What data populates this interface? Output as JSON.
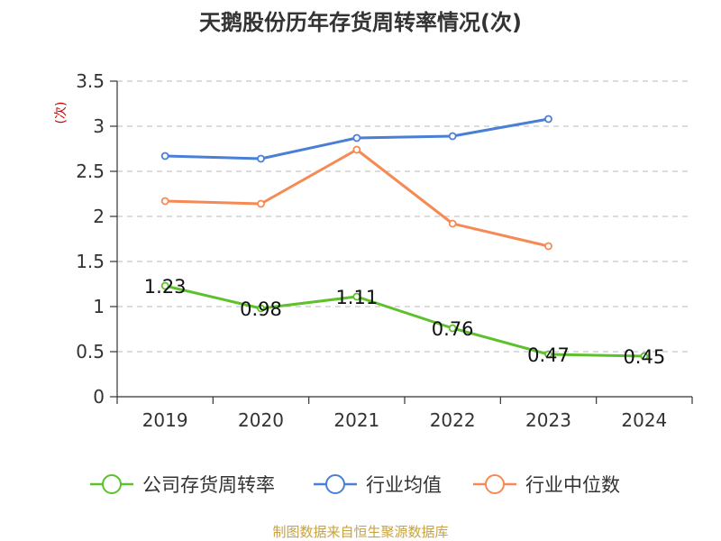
{
  "chart_data": {
    "type": "line",
    "title": "天鹅股份历年存货周转率情况(次)",
    "ylabel": "(次)",
    "xlabel": "",
    "categories": [
      "2019",
      "2020",
      "2021",
      "2022",
      "2023",
      "2024"
    ],
    "ylim": [
      0,
      3.5
    ],
    "yticks": [
      "0",
      "0.5",
      "1",
      "1.5",
      "2",
      "2.5",
      "3",
      "3.5"
    ],
    "grid": true,
    "legend_position": "bottom",
    "series": [
      {
        "name": "公司存货周转率",
        "color": "#5cc12a",
        "values": [
          1.23,
          0.98,
          1.11,
          0.76,
          0.47,
          0.45
        ],
        "labels": [
          "1.23",
          "0.98",
          "1.11",
          "0.76",
          "0.47",
          "0.45"
        ]
      },
      {
        "name": "行业均值",
        "color": "#4a7fd8",
        "values": [
          2.67,
          2.64,
          2.87,
          2.89,
          3.08,
          null
        ]
      },
      {
        "name": "行业中位数",
        "color": "#f58a55",
        "values": [
          2.17,
          2.14,
          2.74,
          1.92,
          1.67,
          null
        ]
      }
    ],
    "source": "制图数据来自恒生聚源数据库"
  }
}
